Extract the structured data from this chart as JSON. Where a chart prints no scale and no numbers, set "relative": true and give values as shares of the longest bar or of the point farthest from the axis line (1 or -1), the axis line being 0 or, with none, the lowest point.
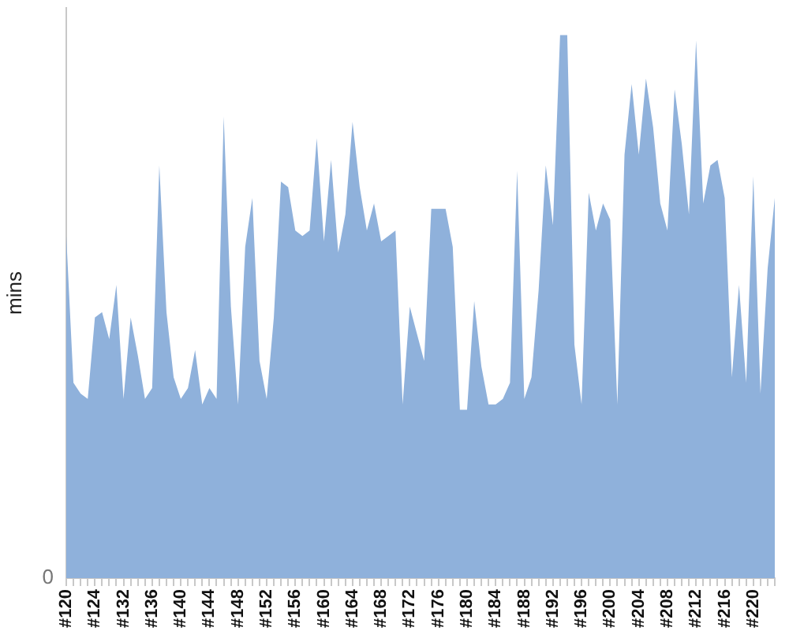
{
  "chart_data": {
    "type": "area",
    "ylabel": "mins",
    "relative": true,
    "color": "#8fb1db",
    "annotations": [
      "0"
    ],
    "categories": [
      "#120",
      null,
      null,
      null,
      "#124",
      null,
      null,
      null,
      "#132",
      null,
      null,
      null,
      "#136",
      null,
      null,
      null,
      "#140",
      null,
      null,
      null,
      "#144",
      null,
      null,
      null,
      "#148",
      null,
      null,
      null,
      "#152",
      null,
      null,
      null,
      "#156",
      null,
      null,
      null,
      "#160",
      null,
      null,
      null,
      "#164",
      null,
      null,
      null,
      "#168",
      null,
      null,
      null,
      "#172",
      null,
      null,
      null,
      "#176",
      null,
      null,
      null,
      "#180",
      null,
      null,
      null,
      "#184",
      null,
      null,
      null,
      "#188",
      null,
      null,
      null,
      "#192",
      null,
      null,
      null,
      "#196",
      null,
      null,
      null,
      "#200",
      null,
      null,
      null,
      "#204",
      null,
      null,
      null,
      "#208",
      null,
      null,
      null,
      "#212",
      null,
      null,
      null,
      "#216",
      null,
      null,
      null,
      "#220",
      null,
      null,
      null
    ],
    "values": [
      0.63,
      0.36,
      0.34,
      0.33,
      0.48,
      0.49,
      0.44,
      0.54,
      0.33,
      0.48,
      0.41,
      0.33,
      0.35,
      0.76,
      0.49,
      0.37,
      0.33,
      0.35,
      0.42,
      0.32,
      0.35,
      0.33,
      0.85,
      0.5,
      0.32,
      0.61,
      0.7,
      0.4,
      0.33,
      0.48,
      0.73,
      0.72,
      0.64,
      0.63,
      0.64,
      0.81,
      0.62,
      0.77,
      0.6,
      0.67,
      0.84,
      0.72,
      0.64,
      0.69,
      0.62,
      0.63,
      0.64,
      0.32,
      0.5,
      0.45,
      0.4,
      0.68,
      0.68,
      0.68,
      0.61,
      0.31,
      0.31,
      0.51,
      0.39,
      0.32,
      0.32,
      0.33,
      0.36,
      0.75,
      0.33,
      0.37,
      0.53,
      0.76,
      0.65,
      1.0,
      1.0,
      0.43,
      0.32,
      0.71,
      0.64,
      0.69,
      0.66,
      0.32,
      0.78,
      0.91,
      0.78,
      0.92,
      0.83,
      0.69,
      0.64,
      0.9,
      0.8,
      0.67,
      0.99,
      0.69,
      0.76,
      0.77,
      0.7,
      0.37,
      0.54,
      0.36,
      0.74,
      0.34,
      0.57,
      0.7
    ]
  }
}
